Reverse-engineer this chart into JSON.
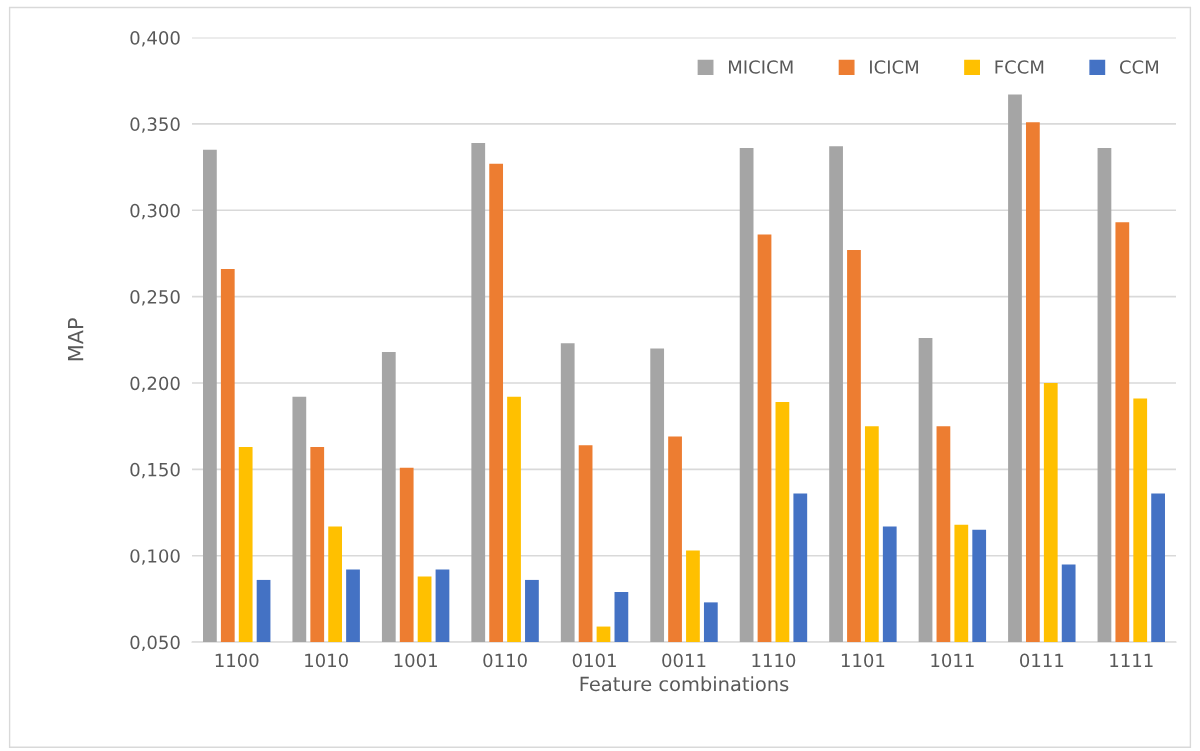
{
  "chart_data": {
    "type": "bar",
    "xlabel": "Feature combinations",
    "ylabel": "MAP",
    "categories": [
      "1100",
      "1010",
      "1001",
      "0110",
      "0101",
      "0011",
      "1110",
      "1101",
      "1011",
      "0111",
      "1111"
    ],
    "series": [
      {
        "name": "MICICM",
        "color": "#a5a5a5",
        "values": [
          0.335,
          0.192,
          0.218,
          0.339,
          0.223,
          0.22,
          0.336,
          0.337,
          0.226,
          0.367,
          0.336
        ]
      },
      {
        "name": "ICICM",
        "color": "#ed7d31",
        "values": [
          0.266,
          0.163,
          0.151,
          0.327,
          0.164,
          0.169,
          0.286,
          0.277,
          0.175,
          0.351,
          0.293
        ]
      },
      {
        "name": "FCCM",
        "color": "#ffc000",
        "values": [
          0.163,
          0.117,
          0.088,
          0.192,
          0.059,
          0.103,
          0.189,
          0.175,
          0.118,
          0.2,
          0.191
        ]
      },
      {
        "name": "CCM",
        "color": "#4472c4",
        "values": [
          0.086,
          0.092,
          0.092,
          0.086,
          0.079,
          0.073,
          0.136,
          0.117,
          0.115,
          0.095,
          0.136
        ]
      }
    ],
    "ylim": [
      0.05,
      0.4
    ],
    "yticks": [
      {
        "value": 0.05,
        "label": "0,050"
      },
      {
        "value": 0.1,
        "label": "0,100"
      },
      {
        "value": 0.15,
        "label": "0,150"
      },
      {
        "value": 0.2,
        "label": "0,200"
      },
      {
        "value": 0.25,
        "label": "0,250"
      },
      {
        "value": 0.3,
        "label": "0,300"
      },
      {
        "value": 0.35,
        "label": "0,350"
      },
      {
        "value": 0.4,
        "label": "0,400"
      }
    ],
    "grid": "y",
    "legend": "top right"
  }
}
